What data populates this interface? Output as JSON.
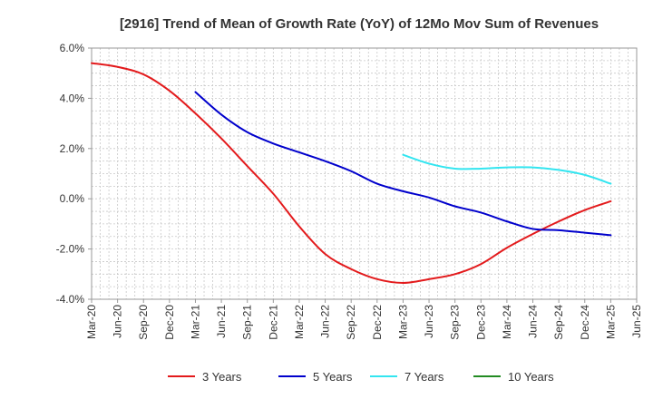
{
  "chart_data": {
    "type": "line",
    "title": "[2916]  Trend of Mean of Growth Rate (YoY) of 12Mo Mov Sum of Revenues",
    "xlabel": "",
    "ylabel": "",
    "ylim": [
      -4.0,
      6.0
    ],
    "yticks": [
      {
        "value": 6.0,
        "label": "6.0%"
      },
      {
        "value": 4.0,
        "label": "4.0%"
      },
      {
        "value": 2.0,
        "label": "2.0%"
      },
      {
        "value": 0.0,
        "label": "0.0%"
      },
      {
        "value": -2.0,
        "label": "-2.0%"
      },
      {
        "value": -4.0,
        "label": "-4.0%"
      }
    ],
    "x_start": "Mar-20",
    "x_end": "Jun-25",
    "x_tick_labels": [
      "Mar-20",
      "Jun-20",
      "Sep-20",
      "Dec-20",
      "Mar-21",
      "Jun-21",
      "Sep-21",
      "Dec-21",
      "Mar-22",
      "Jun-22",
      "Sep-22",
      "Dec-22",
      "Mar-23",
      "Jun-23",
      "Sep-23",
      "Dec-23",
      "Mar-24",
      "Jun-24",
      "Sep-24",
      "Dec-24",
      "Mar-25",
      "Jun-25"
    ],
    "grid": true,
    "legend_position": "bottom",
    "series": [
      {
        "name": "3 Years",
        "color": "#e31a1c",
        "points": [
          {
            "x": "Mar-20",
            "y": 5.4
          },
          {
            "x": "Jun-20",
            "y": 5.25
          },
          {
            "x": "Sep-20",
            "y": 4.95
          },
          {
            "x": "Dec-20",
            "y": 4.3
          },
          {
            "x": "Mar-21",
            "y": 3.4
          },
          {
            "x": "Jun-21",
            "y": 2.4
          },
          {
            "x": "Sep-21",
            "y": 1.3
          },
          {
            "x": "Dec-21",
            "y": 0.2
          },
          {
            "x": "Mar-22",
            "y": -1.1
          },
          {
            "x": "Jun-22",
            "y": -2.2
          },
          {
            "x": "Sep-22",
            "y": -2.8
          },
          {
            "x": "Dec-22",
            "y": -3.2
          },
          {
            "x": "Mar-23",
            "y": -3.35
          },
          {
            "x": "Jun-23",
            "y": -3.2
          },
          {
            "x": "Sep-23",
            "y": -3.0
          },
          {
            "x": "Dec-23",
            "y": -2.6
          },
          {
            "x": "Mar-24",
            "y": -1.95
          },
          {
            "x": "Jun-24",
            "y": -1.4
          },
          {
            "x": "Sep-24",
            "y": -0.9
          },
          {
            "x": "Dec-24",
            "y": -0.45
          },
          {
            "x": "Mar-25",
            "y": -0.1
          }
        ]
      },
      {
        "name": "5 Years",
        "color": "#0000cc",
        "points": [
          {
            "x": "Mar-21",
            "y": 4.25
          },
          {
            "x": "Jun-21",
            "y": 3.35
          },
          {
            "x": "Sep-21",
            "y": 2.65
          },
          {
            "x": "Dec-21",
            "y": 2.2
          },
          {
            "x": "Mar-22",
            "y": 1.85
          },
          {
            "x": "Jun-22",
            "y": 1.5
          },
          {
            "x": "Sep-22",
            "y": 1.1
          },
          {
            "x": "Dec-22",
            "y": 0.6
          },
          {
            "x": "Mar-23",
            "y": 0.3
          },
          {
            "x": "Jun-23",
            "y": 0.05
          },
          {
            "x": "Sep-23",
            "y": -0.3
          },
          {
            "x": "Dec-23",
            "y": -0.55
          },
          {
            "x": "Mar-24",
            "y": -0.9
          },
          {
            "x": "Jun-24",
            "y": -1.2
          },
          {
            "x": "Sep-24",
            "y": -1.25
          },
          {
            "x": "Dec-24",
            "y": -1.35
          },
          {
            "x": "Mar-25",
            "y": -1.45
          }
        ]
      },
      {
        "name": "7 Years",
        "color": "#33e5f0",
        "points": [
          {
            "x": "Mar-23",
            "y": 1.75
          },
          {
            "x": "Jun-23",
            "y": 1.4
          },
          {
            "x": "Sep-23",
            "y": 1.2
          },
          {
            "x": "Dec-23",
            "y": 1.2
          },
          {
            "x": "Mar-24",
            "y": 1.25
          },
          {
            "x": "Jun-24",
            "y": 1.25
          },
          {
            "x": "Sep-24",
            "y": 1.15
          },
          {
            "x": "Dec-24",
            "y": 0.95
          },
          {
            "x": "Mar-25",
            "y": 0.6
          }
        ]
      },
      {
        "name": "10 Years",
        "color": "#228b22",
        "points": []
      }
    ]
  }
}
